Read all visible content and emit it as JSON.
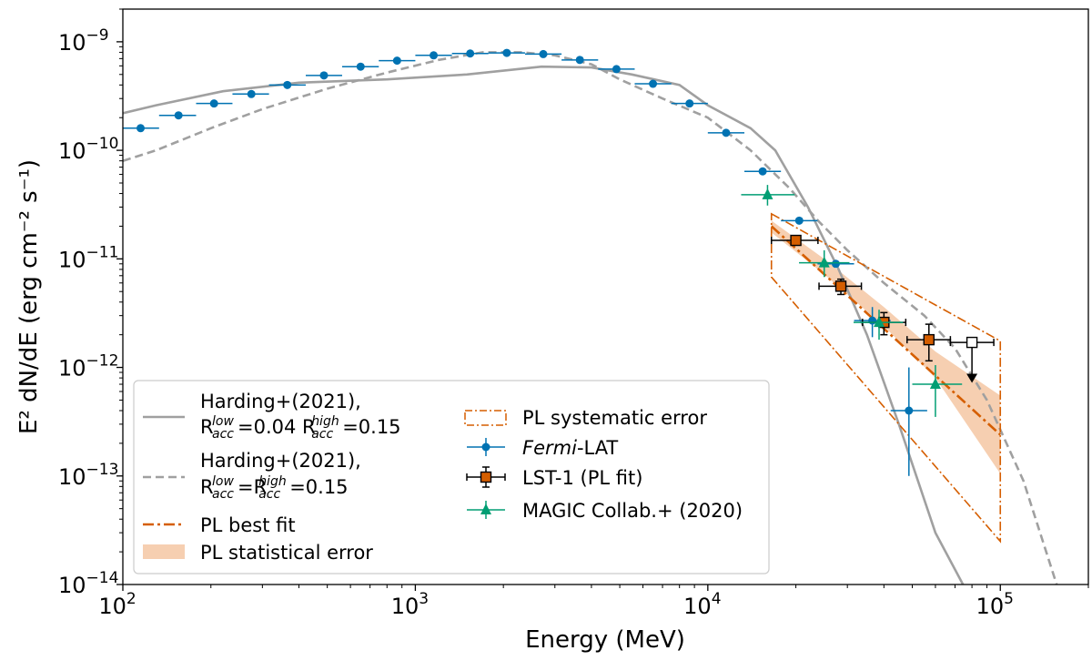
{
  "chart_data": {
    "type": "scatter",
    "title": "",
    "xlabel": "Energy (MeV)",
    "ylabel": "E² dN/dE (erg cm⁻² s⁻¹)",
    "xscale": "log",
    "yscale": "log",
    "xlim": [
      100,
      200000
    ],
    "ylim": [
      1e-14,
      2e-09
    ],
    "x_ticks": [
      {
        "value": 100,
        "base": "10",
        "exp": "2"
      },
      {
        "value": 1000,
        "base": "10",
        "exp": "3"
      },
      {
        "value": 10000,
        "base": "10",
        "exp": "4"
      },
      {
        "value": 100000,
        "base": "10",
        "exp": "5"
      }
    ],
    "y_ticks": [
      {
        "value": 1e-14,
        "base": "10",
        "exp": "−14"
      },
      {
        "value": 1e-13,
        "base": "10",
        "exp": "−13"
      },
      {
        "value": 1e-12,
        "base": "10",
        "exp": "−12"
      },
      {
        "value": 1e-11,
        "base": "10",
        "exp": "−11"
      },
      {
        "value": 1e-10,
        "base": "10",
        "exp": "−10"
      },
      {
        "value": 1e-09,
        "base": "10",
        "exp": "−9"
      }
    ],
    "colors": {
      "fermi": "#0072b2",
      "lst": "#d55e00",
      "magic": "#009e73",
      "model": "#a0a0a0",
      "band": "#f6cfb1"
    },
    "models": [
      {
        "name": "Harding+(2021), Racc_low=0.04 Racc_high=0.15",
        "style": "solid",
        "x": [
          100,
          130,
          220,
          400,
          800,
          1500,
          2700,
          4000,
          5500,
          8000,
          10000,
          14000,
          17000,
          22000,
          28000,
          35000,
          45000,
          60000,
          80000
        ],
        "y": [
          2.2e-10,
          2.6e-10,
          3.5e-10,
          4.2e-10,
          4.5e-10,
          5e-10,
          5.9e-10,
          5.8e-10,
          5e-10,
          4e-10,
          2.6e-10,
          1.6e-10,
          1e-10,
          3e-11,
          8e-12,
          2e-12,
          3e-13,
          3e-14,
          7e-15
        ]
      },
      {
        "name": "Harding+(2021), Racc_low=Racc_high=0.15",
        "style": "dashed",
        "x": [
          100,
          130,
          200,
          300,
          500,
          800,
          1200,
          1700,
          2300,
          3000,
          4000,
          5000,
          7000,
          10000,
          14000,
          19000,
          24000,
          30000,
          40000,
          55000,
          70000,
          90000,
          120000,
          160000
        ],
        "y": [
          8e-11,
          1e-10,
          1.6e-10,
          2.4e-10,
          3.7e-10,
          5.2e-10,
          6.8e-10,
          8e-10,
          8e-10,
          7.5e-10,
          6.2e-10,
          4.5e-10,
          3e-10,
          2e-10,
          1e-10,
          4.5e-11,
          2.2e-11,
          1.2e-11,
          6e-12,
          3e-12,
          1.5e-12,
          5e-13,
          9e-14,
          8e-15
        ]
      }
    ],
    "series": [
      {
        "name": "Fermi-LAT",
        "marker": "circle",
        "points": [
          {
            "x": 115,
            "y": 1.6e-10,
            "xlo": 100,
            "xhi": 133
          },
          {
            "x": 155,
            "y": 2.1e-10,
            "xlo": 133,
            "xhi": 178
          },
          {
            "x": 205,
            "y": 2.7e-10,
            "xlo": 178,
            "xhi": 237
          },
          {
            "x": 275,
            "y": 3.3e-10,
            "xlo": 237,
            "xhi": 316
          },
          {
            "x": 365,
            "y": 4e-10,
            "xlo": 316,
            "xhi": 422
          },
          {
            "x": 487,
            "y": 4.9e-10,
            "xlo": 422,
            "xhi": 562
          },
          {
            "x": 650,
            "y": 5.9e-10,
            "xlo": 562,
            "xhi": 750
          },
          {
            "x": 866,
            "y": 6.7e-10,
            "xlo": 750,
            "xhi": 1000
          },
          {
            "x": 1155,
            "y": 7.5e-10,
            "xlo": 1000,
            "xhi": 1334
          },
          {
            "x": 1540,
            "y": 7.8e-10,
            "xlo": 1334,
            "xhi": 1778
          },
          {
            "x": 2054,
            "y": 7.9e-10,
            "xlo": 1778,
            "xhi": 2371
          },
          {
            "x": 2738,
            "y": 7.7e-10,
            "xlo": 2371,
            "xhi": 3162
          },
          {
            "x": 3651,
            "y": 6.8e-10,
            "xlo": 3162,
            "xhi": 4217
          },
          {
            "x": 4870,
            "y": 5.6e-10,
            "xlo": 4217,
            "xhi": 5623
          },
          {
            "x": 6494,
            "y": 4.1e-10,
            "xlo": 5623,
            "xhi": 7499
          },
          {
            "x": 8660,
            "y": 2.7e-10,
            "xlo": 7499,
            "xhi": 10000
          },
          {
            "x": 11548,
            "y": 1.45e-10,
            "xlo": 10000,
            "xhi": 13335
          },
          {
            "x": 15399,
            "y": 6.4e-11,
            "xlo": 13335,
            "xhi": 17783
          },
          {
            "x": 20535,
            "y": 2.25e-11,
            "xlo": 17783,
            "xhi": 23714
          },
          {
            "x": 27384,
            "y": 9e-12,
            "xlo": 23714,
            "xhi": 31623
          },
          {
            "x": 36517,
            "y": 2.7e-12,
            "xlo": 31623,
            "xhi": 42170,
            "ylo": 1.9e-12,
            "yhi": 3.6e-12
          },
          {
            "x": 48697,
            "y": 4e-13,
            "xlo": 42170,
            "xhi": 56234,
            "ylo": 1e-13,
            "yhi": 1e-12
          }
        ]
      },
      {
        "name": "LST-1 (PL fit)",
        "marker": "square",
        "points": [
          {
            "x": 20000,
            "y": 1.48e-11,
            "xlo": 16500,
            "xhi": 23800,
            "ylo": 1.35e-11,
            "yhi": 1.6e-11
          },
          {
            "x": 28500,
            "y": 5.6e-12,
            "xlo": 24000,
            "xhi": 33500,
            "ylo": 4.7e-12,
            "yhi": 6.5e-12
          },
          {
            "x": 40000,
            "y": 2.6e-12,
            "xlo": 33800,
            "xhi": 47500,
            "ylo": 2e-12,
            "yhi": 3.2e-12
          },
          {
            "x": 57000,
            "y": 1.8e-12,
            "xlo": 48000,
            "xhi": 67500,
            "ylo": 1.15e-12,
            "yhi": 2.5e-12
          }
        ],
        "upper_limit": {
          "x": 80000,
          "y": 1.7e-12,
          "xlo": 67500,
          "xhi": 95000,
          "arrow_to": 7.5e-13
        }
      },
      {
        "name": "MAGIC Collab.+ (2020)",
        "marker": "triangle",
        "points": [
          {
            "x": 16000,
            "y": 3.9e-11,
            "xlo": 13000,
            "xhi": 19800,
            "ylo": 3.1e-11,
            "yhi": 4.8e-11
          },
          {
            "x": 25000,
            "y": 9.2e-12,
            "xlo": 20500,
            "xhi": 30500,
            "ylo": 6.8e-12,
            "yhi": 1.2e-11
          },
          {
            "x": 38500,
            "y": 2.6e-12,
            "xlo": 31500,
            "xhi": 46500,
            "ylo": 1.8e-12,
            "yhi": 3.4e-12
          },
          {
            "x": 60000,
            "y": 7e-13,
            "xlo": 50000,
            "xhi": 74000,
            "ylo": 3.5e-13,
            "yhi": 1.05e-12
          }
        ]
      }
    ],
    "pl_fit": {
      "best_fit": {
        "x": [
          16500,
          100000
        ],
        "y": [
          2e-11,
          2.4e-13
        ]
      },
      "stat_band": {
        "x": [
          16500,
          25000,
          40000,
          60000,
          100000
        ],
        "upper": [
          2.25e-11,
          1e-11,
          3.6e-12,
          1.4e-12,
          5.5e-13
        ],
        "lower": [
          1.75e-11,
          7.2e-12,
          2.4e-12,
          8e-13,
          1.05e-13
        ]
      },
      "sys_polygon": [
        {
          "x": 16500,
          "y": 2.6e-11
        },
        {
          "x": 100000,
          "y": 1.75e-12
        },
        {
          "x": 100000,
          "y": 2.5e-14
        },
        {
          "x": 16500,
          "y": 6.8e-12
        }
      ]
    },
    "legend": {
      "placement": "lower-left",
      "col1": [
        {
          "kind": "model-solid",
          "lines": [
            "Harding+(2021),",
            "R",
            "low",
            "acc",
            "=0.04 R",
            "high",
            "acc",
            "=0.15"
          ]
        },
        {
          "kind": "model-dashed",
          "lines": [
            "Harding+(2021),",
            "R",
            "low",
            "acc",
            "=R",
            "high",
            "acc",
            "=0.15"
          ]
        },
        {
          "kind": "pl-best",
          "label": "PL best fit"
        },
        {
          "kind": "pl-stat",
          "label": "PL statistical error"
        }
      ],
      "col2": [
        {
          "kind": "pl-sys",
          "label": "PL systematic error"
        },
        {
          "kind": "fermi",
          "label_italic": "Fermi",
          "label_rest": "-LAT"
        },
        {
          "kind": "lst",
          "label": "LST-1 (PL fit)"
        },
        {
          "kind": "magic",
          "label": "MAGIC Collab.+ (2020)"
        }
      ]
    }
  }
}
